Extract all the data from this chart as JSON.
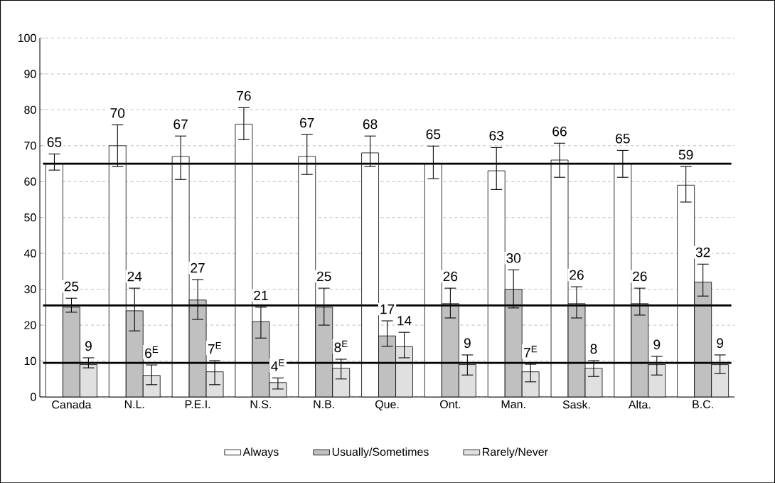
{
  "chart_data": {
    "type": "bar",
    "categories": [
      "Canada",
      "N.L.",
      "P.E.I.",
      "N.S.",
      "N.B.",
      "Que.",
      "Ont.",
      "Man.",
      "Sask.",
      "Alta.",
      "B.C."
    ],
    "series": [
      {
        "name": "Always",
        "color": "#ffffff",
        "values": [
          65,
          70,
          67,
          76,
          67,
          68,
          65,
          63,
          66,
          65,
          59
        ],
        "errors": [
          [
            63.2,
            67.7
          ],
          [
            64.2,
            75.8
          ],
          [
            60.6,
            72.7
          ],
          [
            71.7,
            80.6
          ],
          [
            62,
            73.1
          ],
          [
            64.2,
            72.7
          ],
          [
            60.8,
            69.9
          ],
          [
            57.8,
            69.5
          ],
          [
            61.2,
            70.7
          ],
          [
            61.2,
            68.7
          ],
          [
            54.3,
            64.2
          ]
        ],
        "value_labels": [
          "65",
          "70",
          "67",
          "76",
          "67",
          "68",
          "65",
          "63",
          "66",
          "65",
          "59"
        ]
      },
      {
        "name": "Usually/Sometimes",
        "color": "#c0c0c0",
        "values": [
          25,
          24,
          27,
          21,
          25,
          17,
          26,
          30,
          26,
          26,
          32
        ],
        "errors": [
          [
            23.6,
            27.5
          ],
          [
            18.4,
            30.3
          ],
          [
            21.6,
            32.7
          ],
          [
            16.4,
            25
          ],
          [
            20,
            30.3
          ],
          [
            14.1,
            21.2
          ],
          [
            22,
            30.3
          ],
          [
            24.8,
            35.4
          ],
          [
            22,
            30.7
          ],
          [
            22.8,
            30.3
          ],
          [
            28.1,
            37
          ]
        ],
        "value_labels": [
          "25",
          "24",
          "27",
          "21",
          "25",
          "17",
          "26",
          "30",
          "26",
          "26",
          "32"
        ]
      },
      {
        "name": "Rarely/Never",
        "color": "#e0e0e0",
        "values": [
          9,
          6,
          7,
          4,
          8,
          14,
          9,
          7,
          8,
          9,
          9
        ],
        "errors": [
          [
            8.1,
            10.9
          ],
          [
            3.4,
            8.9
          ],
          [
            3.4,
            10.1
          ],
          [
            2.2,
            5.3
          ],
          [
            5,
            10.5
          ],
          [
            10.9,
            18
          ],
          [
            6.1,
            11.7
          ],
          [
            4.2,
            9.1
          ],
          [
            5.7,
            10.1
          ],
          [
            6.1,
            11.3
          ],
          [
            6.5,
            11.7
          ]
        ],
        "value_labels": [
          "9",
          "6$^{E}$",
          "7$^{E}$",
          "4$^{E}$",
          "8$^{E}$",
          "14",
          "9",
          "7$^{E}$",
          "8",
          "9",
          "9"
        ]
      }
    ],
    "ylim": [
      0,
      100
    ],
    "yticks": [
      0,
      10,
      20,
      30,
      40,
      50,
      60,
      70,
      80,
      90,
      100
    ],
    "grid": "y",
    "legend": "bottom",
    "ref_lines": [
      {
        "axis": "y",
        "value": 65,
        "color": "#000000"
      },
      {
        "axis": "y",
        "value": 25.5,
        "color": "#000000"
      },
      {
        "axis": "y",
        "value": 9.5,
        "color": "#000000"
      }
    ]
  }
}
